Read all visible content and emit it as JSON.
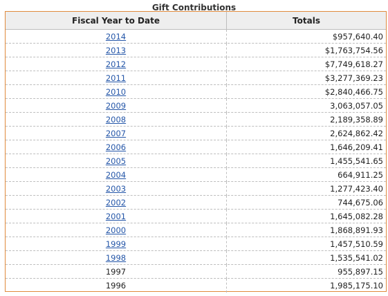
{
  "table": {
    "caption": "Gift Contributions",
    "headers": {
      "year": "Fiscal Year to Date",
      "total": "Totals"
    },
    "rows": [
      {
        "year": "2014",
        "total": "$957,640.40",
        "link": true
      },
      {
        "year": "2013",
        "total": "$1,763,754.56",
        "link": true
      },
      {
        "year": "2012",
        "total": "$7,749,618.27",
        "link": true
      },
      {
        "year": "2011",
        "total": "$3,277,369.23",
        "link": true
      },
      {
        "year": "2010",
        "total": "$2,840,466.75",
        "link": true
      },
      {
        "year": "2009",
        "total": "3,063,057.05",
        "link": true
      },
      {
        "year": "2008",
        "total": "2,189,358.89",
        "link": true
      },
      {
        "year": "2007",
        "total": "2,624,862.42",
        "link": true
      },
      {
        "year": "2006",
        "total": "1,646,209.41",
        "link": true
      },
      {
        "year": "2005",
        "total": "1,455,541.65",
        "link": true
      },
      {
        "year": "2004",
        "total": "664,911.25",
        "link": true
      },
      {
        "year": "2003",
        "total": "1,277,423.40",
        "link": true
      },
      {
        "year": "2002",
        "total": "744,675.06",
        "link": true
      },
      {
        "year": "2001",
        "total": "1,645,082.28",
        "link": true
      },
      {
        "year": "2000",
        "total": "1,868,891.93",
        "link": true
      },
      {
        "year": "1999",
        "total": "1,457,510.59",
        "link": true
      },
      {
        "year": "1998",
        "total": "1,535,541.02",
        "link": true
      },
      {
        "year": "1997",
        "total": "955,897.15",
        "link": false
      },
      {
        "year": "1996",
        "total": "1,985,175.10",
        "link": false
      }
    ]
  },
  "colors": {
    "border_accent": "#e08a3c",
    "header_bg": "#eeeeee",
    "link": "#2456a8",
    "text": "#222222"
  }
}
